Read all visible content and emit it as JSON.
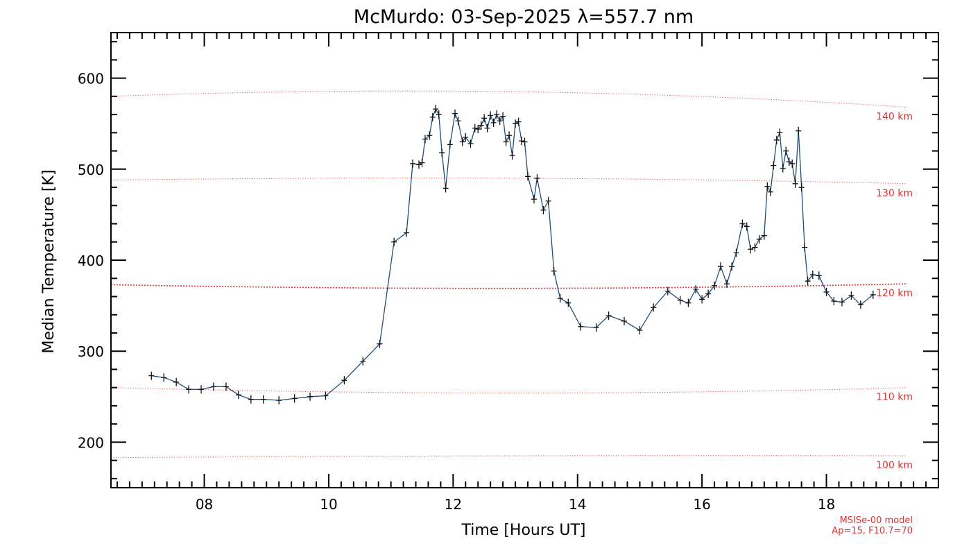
{
  "chart_data": {
    "type": "line",
    "title": "McMurdo: 03-Sep-2025 λ=557.7 nm",
    "xlabel": "Time [Hours UT]",
    "ylabel": "Median Temperature [K]",
    "xlim": [
      6.5,
      19.8
    ],
    "ylim": [
      150,
      650
    ],
    "x_ticks": [
      8,
      10,
      12,
      14,
      16,
      18
    ],
    "x_tick_labels": [
      "08",
      "10",
      "12",
      "14",
      "16",
      "18"
    ],
    "y_ticks": [
      200,
      300,
      400,
      500,
      600
    ],
    "y_tick_labels": [
      "200",
      "300",
      "400",
      "500",
      "600"
    ],
    "series": [
      {
        "color": "#1f4e79",
        "marker": "plus",
        "x": [
          7.15,
          7.35,
          7.55,
          7.75,
          7.95,
          8.15,
          8.35,
          8.55,
          8.75,
          8.95,
          9.2,
          9.45,
          9.7,
          9.95,
          10.25,
          10.55,
          10.82,
          11.05,
          11.25,
          11.35,
          11.45,
          11.5,
          11.55,
          11.62,
          11.67,
          11.72,
          11.77,
          11.82,
          11.88,
          11.95,
          12.03,
          12.08,
          12.15,
          12.2,
          12.28,
          12.35,
          12.4,
          12.45,
          12.5,
          12.55,
          12.6,
          12.65,
          12.7,
          12.75,
          12.8,
          12.85,
          12.9,
          12.95,
          13.0,
          13.05,
          13.1,
          13.15,
          13.2,
          13.3,
          13.35,
          13.45,
          13.53,
          13.62,
          13.72,
          13.85,
          14.05,
          14.3,
          14.5,
          14.75,
          15.0,
          15.22,
          15.45,
          15.65,
          15.78,
          15.9,
          16.0,
          16.1,
          16.2,
          16.3,
          16.4,
          16.48,
          16.55,
          16.65,
          16.72,
          16.78,
          16.85,
          16.92,
          17.0,
          17.05,
          17.1,
          17.15,
          17.2,
          17.25,
          17.3,
          17.35,
          17.4,
          17.45,
          17.5,
          17.55,
          17.6,
          17.65,
          17.7,
          17.78,
          17.88,
          18.0,
          18.12,
          18.25,
          18.4,
          18.55,
          18.75
        ],
        "y": [
          273,
          271,
          266,
          258,
          258,
          261,
          261,
          252,
          247,
          247,
          246,
          248,
          250,
          251,
          268,
          289,
          308,
          420,
          430,
          506,
          505,
          507,
          533,
          537,
          557,
          566,
          560,
          518,
          479,
          527,
          561,
          553,
          530,
          535,
          528,
          545,
          544,
          548,
          556,
          545,
          559,
          551,
          560,
          553,
          558,
          530,
          537,
          515,
          550,
          552,
          531,
          530,
          492,
          467,
          490,
          455,
          465,
          388,
          358,
          353,
          327,
          326,
          339,
          333,
          323,
          348,
          366,
          356,
          353,
          368,
          357,
          363,
          372,
          393,
          374,
          393,
          408,
          440,
          437,
          412,
          414,
          423,
          427,
          481,
          475,
          504,
          532,
          540,
          501,
          520,
          508,
          506,
          484,
          542,
          480,
          414,
          377,
          384,
          383,
          365,
          355,
          354,
          361,
          351,
          362
        ]
      }
    ],
    "reference_lines": [
      {
        "label": "140 km",
        "y_left": 580,
        "y_mid": 585,
        "y_right": 568,
        "bold": false
      },
      {
        "label": "130 km",
        "y_left": 488,
        "y_mid": 490,
        "y_right": 484,
        "bold": false
      },
      {
        "label": "120 km",
        "y_left": 373,
        "y_mid": 369,
        "y_right": 374,
        "bold": true
      },
      {
        "label": "110 km",
        "y_left": 260,
        "y_mid": 254,
        "y_right": 260,
        "bold": false
      },
      {
        "label": "100 km",
        "y_left": 183,
        "y_mid": 185,
        "y_right": 185,
        "bold": false
      }
    ],
    "annotations": [
      "MSISe-00 model",
      "Ap=15, F10.7=70"
    ],
    "grid": false,
    "colors": {
      "series": "#1f4e79",
      "reference": "#e03030",
      "axis": "#000000"
    }
  }
}
